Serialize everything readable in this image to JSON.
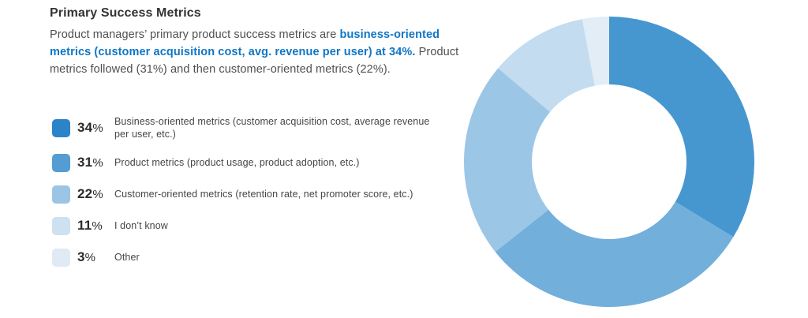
{
  "page": {
    "background": "#ffffff"
  },
  "header": {
    "title": "Primary Success Metrics",
    "intro_prefix": "Product managers’ primary product success metrics are ",
    "intro_highlight": "business-oriented metrics (customer acquisition cost, avg. revenue per user) at 34%.",
    "intro_suffix": " Product metrics followed (31%) and then customer-oriented metrics (22%).",
    "title_color": "#333333",
    "body_color": "#4f4f4f",
    "highlight_color": "#0f76c6"
  },
  "legend": {
    "percent_sign": "%",
    "items": [
      {
        "pct": "34",
        "label": "Business-oriented metrics (customer acquisition cost, average revenue per user, etc.)",
        "swatch_color": "#2b84c8"
      },
      {
        "pct": "31",
        "label": "Product metrics (product usage, product adoption, etc.)",
        "swatch_color": "#549cd4"
      },
      {
        "pct": "22",
        "label": "Customer-oriented metrics (retention rate, net promoter score, etc.)",
        "swatch_color": "#9cc4e4"
      },
      {
        "pct": "11",
        "label": "I don’t know",
        "swatch_color": "#cde1f1"
      },
      {
        "pct": "3",
        "label": "Other",
        "swatch_color": "#dfeaf5"
      }
    ]
  },
  "chart_data": {
    "type": "pie",
    "donut": true,
    "title": "Primary Success Metrics",
    "categories": [
      "Business-oriented metrics (customer acquisition cost, average revenue per user, etc.)",
      "Product metrics (product usage, product adoption, etc.)",
      "Customer-oriented metrics (retention rate, net promoter score, etc.)",
      "I don’t know",
      "Other"
    ],
    "values": [
      34,
      31,
      22,
      11,
      3
    ],
    "unit": "%",
    "colors": [
      "#4697d0",
      "#72afdb",
      "#9cc6e6",
      "#c3dcef",
      "#e2edf6"
    ],
    "start_angle_deg": 0,
    "direction": "clockwise",
    "inner_radius_ratio": 0.53,
    "legend_position": "left"
  }
}
